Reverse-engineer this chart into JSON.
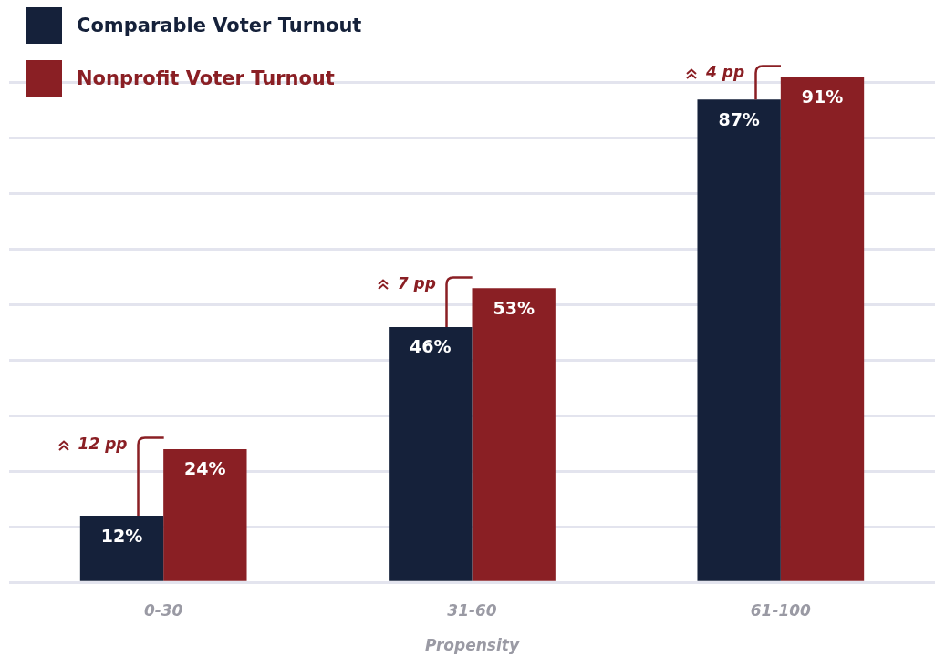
{
  "chart_data": {
    "type": "bar",
    "categories": [
      "0-30",
      "31-60",
      "61-100"
    ],
    "series": [
      {
        "name": "Comparable Voter Turnout",
        "color": "#15213a",
        "values": [
          12,
          46,
          87
        ],
        "value_labels": [
          "12%",
          "46%",
          "87%"
        ]
      },
      {
        "name": "Nonprofit Voter Turnout",
        "color": "#8a1f24",
        "values": [
          24,
          53,
          91
        ],
        "value_labels": [
          "24%",
          "53%",
          "91%"
        ]
      }
    ],
    "xlabel": "Propensity",
    "yticks": [
      {
        "value": 0,
        "label": null
      },
      {
        "value": 10,
        "label": null
      },
      {
        "value": 20,
        "label": null
      },
      {
        "value": 30,
        "label": null
      },
      {
        "value": 40,
        "label": null
      },
      {
        "value": 50,
        "label": null
      },
      {
        "value": 60,
        "label": null
      },
      {
        "value": 70,
        "label": null
      },
      {
        "value": 80,
        "label": null
      },
      {
        "value": 90,
        "label": null
      }
    ],
    "tick_labels": "x",
    "grid": "y",
    "legend": "top left",
    "annotations": [
      {
        "text": "12 pp",
        "x": "0-30",
        "y": 24
      },
      {
        "text": "7 pp",
        "x": "31-60",
        "y": 53
      },
      {
        "text": "4 pp",
        "x": "61-100",
        "y": 91
      }
    ]
  }
}
